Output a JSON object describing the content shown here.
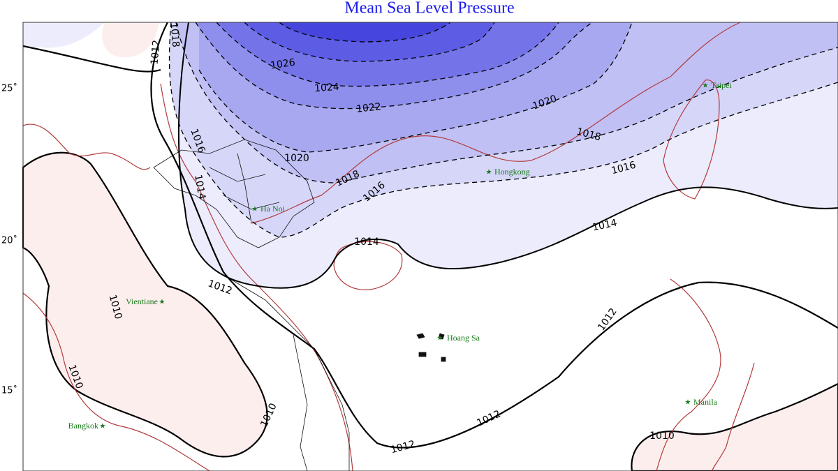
{
  "title": "Mean Sea Level Pressure",
  "latitude_labels": [
    "25˚",
    "20˚",
    "15˚"
  ],
  "isobar_labels": [
    "1026",
    "1024",
    "1022",
    "1020",
    "1020",
    "1018",
    "1018",
    "1018",
    "1016",
    "1016",
    "1016",
    "1014",
    "1014",
    "1014",
    "1012",
    "1012",
    "1012",
    "1012",
    "1010",
    "1010",
    "1010",
    "1010",
    "1012"
  ],
  "cities": [
    "Taipei",
    "Hongkong",
    "Ha Noi",
    "Vientiane",
    "Hoang Sa",
    "Bangkok",
    "Manila"
  ]
}
